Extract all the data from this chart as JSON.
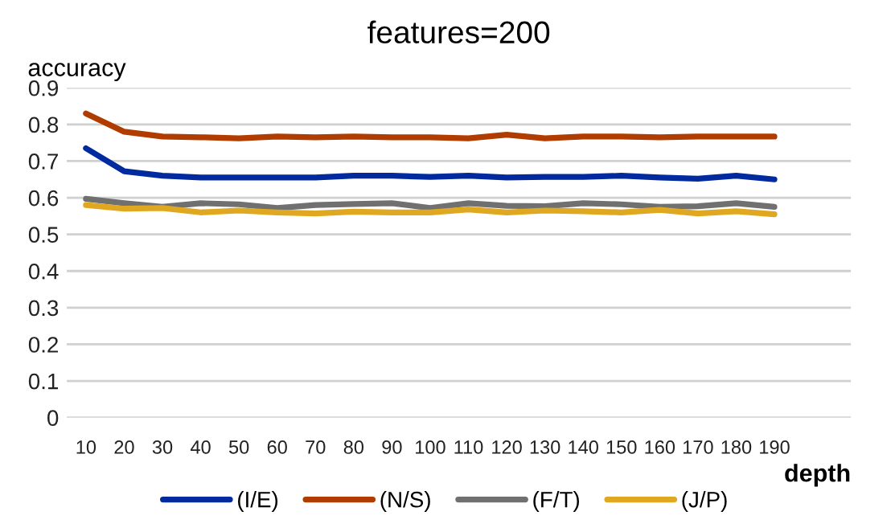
{
  "chart_data": {
    "type": "line",
    "title": "features=200",
    "xlabel": "depth",
    "ylabel": "accuracy",
    "categories": [
      "10",
      "20",
      "30",
      "40",
      "50",
      "60",
      "70",
      "80",
      "90",
      "100",
      "110",
      "120",
      "130",
      "140",
      "150",
      "160",
      "170",
      "180",
      "190"
    ],
    "series": [
      {
        "name": "(I/E)",
        "color": "#002a9e",
        "values": [
          0.735,
          0.672,
          0.66,
          0.655,
          0.655,
          0.655,
          0.655,
          0.66,
          0.66,
          0.657,
          0.66,
          0.655,
          0.657,
          0.657,
          0.66,
          0.655,
          0.652,
          0.66,
          0.65
        ]
      },
      {
        "name": "(N/S)",
        "color": "#b03c00",
        "values": [
          0.83,
          0.78,
          0.767,
          0.765,
          0.762,
          0.767,
          0.765,
          0.767,
          0.765,
          0.765,
          0.762,
          0.772,
          0.762,
          0.767,
          0.767,
          0.765,
          0.767,
          0.767,
          0.767
        ]
      },
      {
        "name": "(F/T)",
        "color": "#707070",
        "values": [
          0.597,
          0.585,
          0.575,
          0.585,
          0.582,
          0.572,
          0.58,
          0.583,
          0.585,
          0.572,
          0.585,
          0.578,
          0.577,
          0.585,
          0.582,
          0.575,
          0.577,
          0.585,
          0.575
        ]
      },
      {
        "name": "(J/P)",
        "color": "#e0a820",
        "values": [
          0.58,
          0.57,
          0.572,
          0.56,
          0.565,
          0.56,
          0.557,
          0.562,
          0.56,
          0.56,
          0.568,
          0.56,
          0.565,
          0.563,
          0.56,
          0.567,
          0.557,
          0.563,
          0.555
        ]
      }
    ],
    "ylim": [
      0,
      0.9
    ],
    "yticks": [
      {
        "value": 0,
        "label": "0"
      },
      0.1,
      0.2,
      0.3,
      0.4,
      0.5,
      0.6,
      0.7,
      0.8,
      0.9
    ],
    "grid": "y",
    "legend": "bottom",
    "marker": "none",
    "line_style": "solid"
  }
}
